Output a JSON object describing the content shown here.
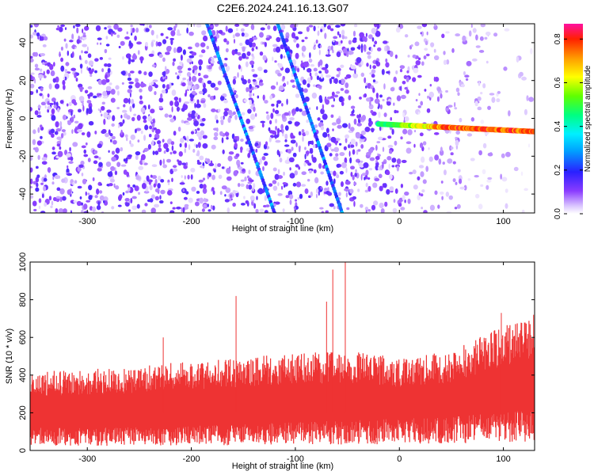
{
  "title": "C2E6.2024.241.16.13.G07",
  "chart_data": [
    {
      "type": "heatmap",
      "xlabel": "Height of straight line (km)",
      "ylabel": "Frequency (Hz)",
      "xlim": [
        -355,
        130
      ],
      "ylim": [
        -50,
        50
      ],
      "xticks": [
        -300,
        -200,
        -100,
        0,
        100
      ],
      "yticks": [
        -40,
        -20,
        0,
        20,
        40
      ],
      "colorbar": {
        "label": "Normalized spectral amplitude",
        "range": [
          0.0,
          0.87
        ],
        "ticks": [
          0.0,
          0.2,
          0.4,
          0.6,
          0.8
        ]
      },
      "features": [
        {
          "kind": "line",
          "x": [
            -185,
            -120
          ],
          "y": [
            50,
            -50
          ],
          "amplitude": 0.3
        },
        {
          "kind": "line",
          "x": [
            -117,
            -55
          ],
          "y": [
            50,
            -50
          ],
          "amplitude": 0.3
        },
        {
          "kind": "tone",
          "x": [
            -20,
            130
          ],
          "y": [
            -3,
            -7
          ],
          "amplitude": 0.8
        }
      ]
    },
    {
      "type": "area",
      "xlabel": "Height of straight line (km)",
      "ylabel": "SNR (10 * v/v)",
      "xlim": [
        -355,
        130
      ],
      "ylim": [
        0,
        1000
      ],
      "xticks": [
        -300,
        -200,
        -100,
        0,
        100
      ],
      "yticks": [
        0,
        200,
        400,
        600,
        800,
        1000
      ],
      "color": "#ee3333",
      "envelope": {
        "x": [
          -355,
          -300,
          -250,
          -200,
          -150,
          -100,
          -50,
          0,
          50,
          100,
          130
        ],
        "y_low": [
          120,
          120,
          130,
          130,
          140,
          150,
          160,
          170,
          180,
          200,
          220
        ],
        "y_high": [
          380,
          390,
          410,
          430,
          450,
          470,
          480,
          450,
          480,
          600,
          640
        ]
      },
      "peaks": [
        {
          "x": -353,
          "y": 400
        },
        {
          "x": -227,
          "y": 600
        },
        {
          "x": -157,
          "y": 820
        },
        {
          "x": -70,
          "y": 790
        },
        {
          "x": -64,
          "y": 960
        },
        {
          "x": -52,
          "y": 1000
        },
        {
          "x": 98,
          "y": 730
        },
        {
          "x": 129,
          "y": 720
        }
      ]
    }
  ]
}
